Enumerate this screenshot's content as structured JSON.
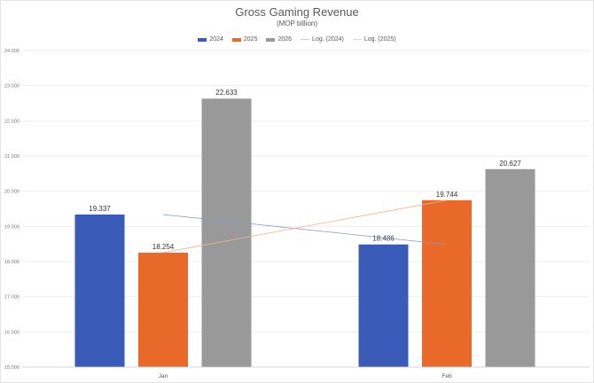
{
  "chart_data": {
    "type": "bar",
    "title": "Gross Gaming Revenue",
    "subtitle": "(MOP billion)",
    "xlabel": "",
    "ylabel": "",
    "categories": [
      "Jan",
      "Feb"
    ],
    "series": [
      {
        "name": "2024",
        "values": [
          19.337,
          18.486
        ],
        "color": "#3a5cb8"
      },
      {
        "name": "2025",
        "values": [
          18.254,
          19.744
        ],
        "color": "#e8692a"
      },
      {
        "name": "2026",
        "values": [
          22.633,
          20.627
        ],
        "color": "#999999"
      }
    ],
    "trendlines": [
      {
        "name": "Log. (2024)",
        "series": "2024",
        "color": "#8a98c4"
      },
      {
        "name": "Log. (2025)",
        "series": "2025",
        "color": "#f2b48c"
      }
    ],
    "ylim": [
      15,
      24
    ],
    "yticks": [
      "15.000",
      "16.000",
      "17.000",
      "18.000",
      "19.000",
      "20.000",
      "21.000",
      "22.000",
      "23.000",
      "24.000"
    ],
    "data_labels": [
      [
        "19.337",
        "18.486"
      ],
      [
        "18.254",
        "19.744"
      ],
      [
        "22.633",
        "20.627"
      ]
    ],
    "grid": true,
    "legend_position": "top"
  }
}
